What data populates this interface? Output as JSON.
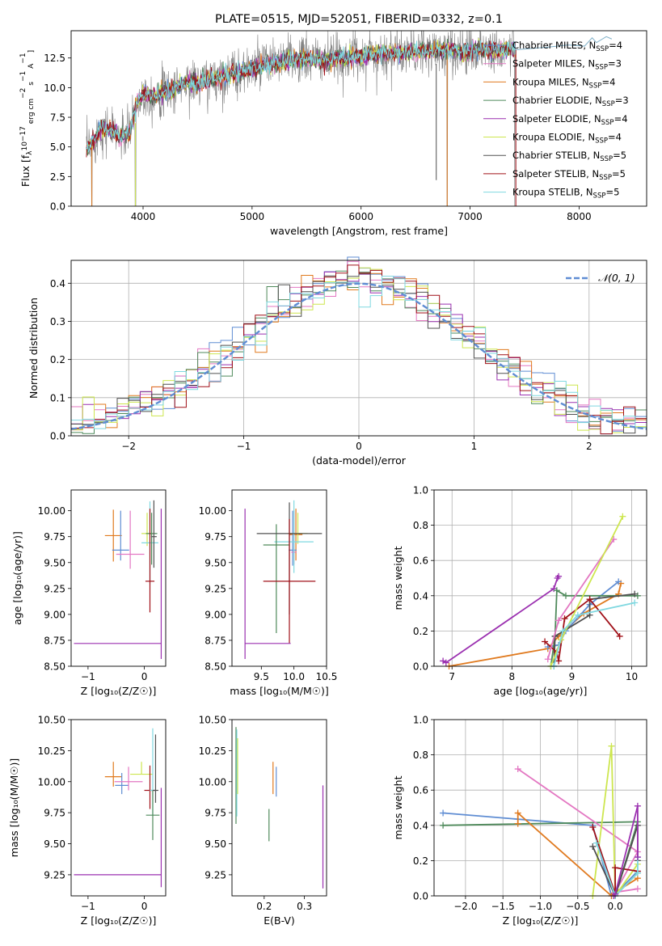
{
  "chart_data": [
    {
      "id": "spectrum",
      "type": "line",
      "title": "PLATE=0515, MJD=52051, FIBERID=0332, z=0.1",
      "xlabel": "wavelength [Angstrom, rest frame]",
      "ylabel_parts": [
        "Flux [f",
        "λ",
        "10",
        "−17",
        " erg cm",
        "−2",
        " s",
        "−1",
        " A",
        "−1",
        "]"
      ],
      "xlim": [
        3340,
        8620
      ],
      "ylim": [
        0,
        14.8
      ],
      "xticks": [
        4000,
        5000,
        6000,
        7000,
        8000
      ],
      "yticks": [
        0.0,
        2.5,
        5.0,
        7.5,
        10.0,
        12.5
      ],
      "grid": false,
      "legend_position": "upper-right",
      "continuum": {
        "x": [
          3480,
          3550,
          3620,
          3700,
          3800,
          3880,
          3950,
          4000,
          4100,
          4200,
          4300,
          4400,
          4500,
          4700,
          4900,
          5100,
          5300,
          5500,
          5700,
          5900,
          6100,
          6300,
          6500,
          6700,
          6900,
          7100,
          7300,
          7420
        ],
        "y": [
          4.8,
          5.6,
          6.6,
          6.4,
          5.8,
          6.3,
          8.9,
          9.5,
          9.3,
          9.6,
          10.0,
          10.4,
          10.4,
          10.9,
          11.3,
          11.9,
          12.3,
          12.4,
          12.3,
          12.6,
          12.8,
          12.9,
          13.0,
          13.1,
          13.1,
          13.2,
          13.2,
          13.2
        ]
      },
      "model_tail": {
        "x": [
          7420,
          7700,
          7900,
          8050,
          8120,
          8160,
          8250,
          8300
        ],
        "y": [
          13.2,
          13.4,
          13.6,
          13.5,
          14.2,
          13.8,
          14.3,
          14.1
        ]
      },
      "series": [
        {
          "name": "Chabrier MILES, N",
          "sub": "SSP",
          "suffix": "=4",
          "color": "#5f8dd3"
        },
        {
          "name": "Salpeter MILES, N",
          "sub": "SSP",
          "suffix": "=3",
          "color": "#e377c2"
        },
        {
          "name": "Kroupa MILES, N",
          "sub": "SSP",
          "suffix": "=4",
          "color": "#e07a1f"
        },
        {
          "name": "Chabrier ELODIE, N",
          "sub": "SSP",
          "suffix": "=3",
          "color": "#4f8a5b"
        },
        {
          "name": "Salpeter ELODIE, N",
          "sub": "SSP",
          "suffix": "=4",
          "color": "#9b30b0"
        },
        {
          "name": "Kroupa ELODIE, N",
          "sub": "SSP",
          "suffix": "=4",
          "color": "#cde64f"
        },
        {
          "name": "Chabrier STELIB, N",
          "sub": "SSP",
          "suffix": "=5",
          "color": "#505050"
        },
        {
          "name": "Salpeter STELIB, N",
          "sub": "SSP",
          "suffix": "=5",
          "color": "#a01018"
        },
        {
          "name": "Kroupa STELIB, N",
          "sub": "SSP",
          "suffix": "=5",
          "color": "#7fd8e0"
        }
      ]
    },
    {
      "id": "residuals",
      "type": "histogram",
      "xlabel": "(data-model)/error",
      "ylabel": "Normed distribution",
      "xlim": [
        -2.5,
        2.5
      ],
      "ylim": [
        0,
        0.46
      ],
      "xticks": [
        -2,
        -1,
        0,
        1,
        2
      ],
      "yticks": [
        0.0,
        0.1,
        0.2,
        0.3,
        0.4
      ],
      "grid": true,
      "legend_position": "upper-right",
      "gaussian_label": "𝒩(0, 1)",
      "gaussian_color": "#5f8dd3",
      "bin_width": 0.1
    },
    {
      "id": "age-vs-Z",
      "type": "scatter",
      "xlabel": "Z [log₁₀(Z/Z☉)]",
      "ylabel": "age  [log₁₀(age/yr)]",
      "xlim": [
        -1.3,
        0.38
      ],
      "ylim": [
        8.5,
        10.2
      ],
      "xticks": [
        -1,
        0
      ],
      "yticks": [
        8.5,
        8.75,
        9.0,
        9.25,
        9.5,
        9.75,
        10.0
      ],
      "grid": false,
      "points": [
        {
          "x": -0.55,
          "y": 9.76,
          "xerr": [
            0.15,
            0.15
          ],
          "yerr": [
            0.25,
            0.25
          ],
          "color": "#e07a1f"
        },
        {
          "x": -0.42,
          "y": 9.62,
          "xerr": [
            0.15,
            0.15
          ],
          "yerr": [
            0.1,
            0.38
          ],
          "color": "#5f8dd3"
        },
        {
          "x": -0.25,
          "y": 9.58,
          "xerr": [
            0.25,
            0.25
          ],
          "yerr": [
            0.14,
            0.42
          ],
          "color": "#e377c2"
        },
        {
          "x": 0.05,
          "y": 9.78,
          "xerr": [
            0.1,
            0.1
          ],
          "yerr": [
            0.12,
            0.2
          ],
          "color": "#cde64f"
        },
        {
          "x": 0.1,
          "y": 9.69,
          "xerr": [
            0.15,
            0.15
          ],
          "yerr": [
            0.4,
            0.4
          ],
          "color": "#7fd8e0"
        },
        {
          "x": 0.13,
          "y": 9.78,
          "xerr": [
            0.1,
            0.1
          ],
          "yerr": [
            0.3,
            0.2
          ],
          "color": "#4f8a5b"
        },
        {
          "x": 0.17,
          "y": 9.75,
          "xerr": [
            0.05,
            0.05
          ],
          "yerr": [
            0.3,
            0.35
          ],
          "color": "#505050"
        },
        {
          "x": 0.1,
          "y": 9.32,
          "xerr": [
            0.08,
            0.08
          ],
          "yerr": [
            0.3,
            0.7
          ],
          "color": "#a01018"
        },
        {
          "x": 0.3,
          "y": 8.72,
          "xerr": [
            1.55,
            0.0
          ],
          "yerr": [
            0.15,
            1.3
          ],
          "color": "#9b30b0"
        }
      ]
    },
    {
      "id": "age-vs-mass",
      "type": "scatter",
      "xlabel": "mass [log₁₀(M/M☉)]",
      "ylabel": "",
      "xlim": [
        9.05,
        10.5
      ],
      "ylim": [
        8.5,
        10.2
      ],
      "xticks": [
        9.5,
        10.0,
        10.5
      ],
      "yticks": [
        8.5,
        8.75,
        9.0,
        9.25,
        9.5,
        9.75,
        10.0
      ],
      "grid": false,
      "points": [
        {
          "x": 10.03,
          "y": 9.77,
          "xerr": [
            0.1,
            0.1
          ],
          "yerr": [
            0.25,
            0.25
          ],
          "color": "#e07a1f"
        },
        {
          "x": 9.98,
          "y": 9.62,
          "xerr": [
            0.06,
            0.06
          ],
          "yerr": [
            0.15,
            0.38
          ],
          "color": "#5f8dd3"
        },
        {
          "x": 10.0,
          "y": 9.6,
          "xerr": [
            0.04,
            0.04
          ],
          "yerr": [
            0.12,
            0.4
          ],
          "color": "#e377c2"
        },
        {
          "x": 10.06,
          "y": 9.78,
          "xerr": [
            0.15,
            0.15
          ],
          "yerr": [
            0.1,
            0.2
          ],
          "color": "#cde64f"
        },
        {
          "x": 10.0,
          "y": 9.7,
          "xerr": [
            0.3,
            0.3
          ],
          "yerr": [
            0.3,
            0.4
          ],
          "color": "#7fd8e0"
        },
        {
          "x": 9.73,
          "y": 9.67,
          "xerr": [
            0.2,
            0.2
          ],
          "yerr": [
            0.85,
            0.2
          ],
          "color": "#4f8a5b"
        },
        {
          "x": 9.93,
          "y": 9.78,
          "xerr": [
            0.5,
            0.5
          ],
          "yerr": [
            0.78,
            0.3
          ],
          "color": "#505050"
        },
        {
          "x": 9.93,
          "y": 9.32,
          "xerr": [
            0.4,
            0.4
          ],
          "yerr": [
            0.6,
            0.6
          ],
          "color": "#a01018"
        },
        {
          "x": 9.25,
          "y": 8.72,
          "xerr": [
            0.0,
            0.7
          ],
          "yerr": [
            0.15,
            1.3
          ],
          "color": "#9b30b0"
        }
      ]
    },
    {
      "id": "weight-vs-age",
      "type": "line",
      "xlabel": "age  [log₁₀(age/yr)]",
      "ylabel": "mass weight",
      "xlim": [
        6.7,
        10.25
      ],
      "ylim": [
        0,
        1.0
      ],
      "xticks": [
        7,
        8,
        9,
        10
      ],
      "yticks": [
        0.0,
        0.2,
        0.4,
        0.6,
        0.8,
        1.0
      ],
      "grid": true,
      "series": [
        {
          "color": "#9b30b0",
          "x": [
            6.85,
            6.9,
            8.7,
            8.76,
            8.78
          ],
          "y": [
            0.03,
            0.02,
            0.44,
            0.5,
            0.51
          ]
        },
        {
          "color": "#e07a1f",
          "x": [
            6.95,
            8.6,
            8.78,
            9.2,
            9.78,
            9.82
          ],
          "y": [
            0.0,
            0.1,
            0.17,
            0.3,
            0.41,
            0.47
          ]
        },
        {
          "color": "#5f8dd3",
          "x": [
            8.6,
            8.78,
            8.9,
            9.3,
            9.78
          ],
          "y": [
            0.11,
            0.12,
            0.2,
            0.35,
            0.48
          ]
        },
        {
          "color": "#4f8a5b",
          "x": [
            8.65,
            8.72,
            8.75,
            8.9,
            10.1
          ],
          "y": [
            0.0,
            0.17,
            0.43,
            0.4,
            0.4
          ]
        },
        {
          "color": "#505050",
          "x": [
            8.7,
            8.72,
            9.3,
            9.3,
            10.05
          ],
          "y": [
            0.0,
            0.17,
            0.29,
            0.38,
            0.41
          ]
        },
        {
          "color": "#a01018",
          "x": [
            8.55,
            8.75,
            8.78,
            8.88,
            9.3,
            9.8
          ],
          "y": [
            0.14,
            0.08,
            0.03,
            0.27,
            0.38,
            0.17
          ]
        },
        {
          "color": "#e377c2",
          "x": [
            8.6,
            8.78,
            9.7
          ],
          "y": [
            0.04,
            0.26,
            0.72
          ]
        },
        {
          "color": "#cde64f",
          "x": [
            8.65,
            8.82,
            9.85
          ],
          "y": [
            0.0,
            0.15,
            0.85
          ]
        },
        {
          "color": "#7fd8e0",
          "x": [
            8.7,
            8.85,
            9.1,
            10.05
          ],
          "y": [
            0.0,
            0.2,
            0.29,
            0.36
          ]
        }
      ]
    },
    {
      "id": "mass-vs-Z",
      "type": "scatter",
      "xlabel": "Z [log₁₀(Z/Z☉)]",
      "ylabel": "mass [log₁₀(M/M☉)]",
      "xlim": [
        -1.3,
        0.38
      ],
      "ylim": [
        9.08,
        10.5
      ],
      "xticks": [
        -1,
        0
      ],
      "yticks": [
        9.25,
        9.5,
        9.75,
        10.0,
        10.25,
        10.5
      ],
      "grid": false,
      "points": [
        {
          "x": -0.55,
          "y": 10.04,
          "xerr": [
            0.15,
            0.15
          ],
          "yerr": [
            0.08,
            0.12
          ],
          "color": "#e07a1f"
        },
        {
          "x": -0.4,
          "y": 9.97,
          "xerr": [
            0.12,
            0.12
          ],
          "yerr": [
            0.07,
            0.1
          ],
          "color": "#5f8dd3"
        },
        {
          "x": -0.28,
          "y": 10.0,
          "xerr": [
            0.25,
            0.25
          ],
          "yerr": [
            0.07,
            0.12
          ],
          "color": "#e377c2"
        },
        {
          "x": -0.05,
          "y": 10.06,
          "xerr": [
            0.2,
            0.2
          ],
          "yerr": [
            0.0,
            0.1
          ],
          "color": "#cde64f"
        },
        {
          "x": 0.1,
          "y": 9.93,
          "xerr": [
            0.1,
            0.1
          ],
          "yerr": [
            0.15,
            0.2
          ],
          "color": "#a01018"
        },
        {
          "x": 0.15,
          "y": 9.93,
          "xerr": [
            0.05,
            0.05
          ],
          "yerr": [
            0.2,
            0.5
          ],
          "color": "#7fd8e0"
        },
        {
          "x": 0.15,
          "y": 9.73,
          "xerr": [
            0.12,
            0.12
          ],
          "yerr": [
            0.2,
            0.2
          ],
          "color": "#4f8a5b"
        },
        {
          "x": 0.2,
          "y": 9.93,
          "xerr": [
            0.05,
            0.05
          ],
          "yerr": [
            0.1,
            0.45
          ],
          "color": "#505050"
        },
        {
          "x": 0.3,
          "y": 9.25,
          "xerr": [
            1.55,
            0.0
          ],
          "yerr": [
            0.1,
            0.7
          ],
          "color": "#9b30b0"
        }
      ]
    },
    {
      "id": "mass-vs-ebv",
      "type": "scatter",
      "xlabel": "E(B-V)",
      "ylabel": "",
      "xlim": [
        0.12,
        0.355
      ],
      "ylim": [
        9.08,
        10.5
      ],
      "xticks": [
        0.2,
        0.3
      ],
      "yticks": [
        9.25,
        9.5,
        9.75,
        10.0,
        10.25,
        10.5
      ],
      "grid": false,
      "segments": [
        {
          "x": 0.13,
          "y0": 9.66,
          "y1": 10.44,
          "color": "#4f8a5b"
        },
        {
          "x": 0.132,
          "y0": 9.72,
          "y1": 10.42,
          "color": "#7fd8e0"
        },
        {
          "x": 0.134,
          "y0": 9.9,
          "y1": 10.35,
          "color": "#cde64f"
        },
        {
          "x": 0.212,
          "y0": 9.52,
          "y1": 9.78,
          "color": "#4f8a5b"
        },
        {
          "x": 0.222,
          "y0": 9.9,
          "y1": 10.16,
          "color": "#e07a1f"
        },
        {
          "x": 0.23,
          "y0": 9.88,
          "y1": 10.12,
          "color": "#5f8dd3"
        },
        {
          "x": 0.346,
          "y0": 9.14,
          "y1": 9.97,
          "color": "#9b30b0"
        }
      ]
    },
    {
      "id": "weight-vs-Z",
      "type": "line",
      "xlabel": "Z [log₁₀(Z/Z☉)]",
      "ylabel": "mass weight",
      "xlim": [
        -2.42,
        0.42
      ],
      "ylim": [
        0,
        1.0
      ],
      "xticks": [
        -2.0,
        -1.5,
        -1.0,
        -0.5,
        0.0
      ],
      "yticks": [
        0.0,
        0.2,
        0.4,
        0.6,
        0.8,
        1.0
      ],
      "grid": true,
      "series": [
        {
          "color": "#5f8dd3",
          "x": [
            -2.3,
            -0.3,
            -0.05,
            0.0,
            0.3
          ],
          "y": [
            0.47,
            0.4,
            0.0,
            0.01,
            0.14
          ]
        },
        {
          "color": "#4f8a5b",
          "x": [
            -2.3,
            0.3,
            0.0,
            0.3
          ],
          "y": [
            0.4,
            0.42,
            0.0,
            0.13
          ]
        },
        {
          "color": "#e07a1f",
          "x": [
            -1.3,
            -1.3,
            -0.05,
            0.0,
            0.3
          ],
          "y": [
            0.41,
            0.47,
            0.0,
            0.02,
            0.1
          ]
        },
        {
          "color": "#e377c2",
          "x": [
            -1.3,
            0.3,
            0.0,
            0.3
          ],
          "y": [
            0.72,
            0.25,
            0.02,
            0.04
          ]
        },
        {
          "color": "#cde64f",
          "x": [
            -0.3,
            -0.05,
            0.0,
            0.3
          ],
          "y": [
            0.0,
            0.85,
            0.0,
            0.18
          ]
        },
        {
          "color": "#a01018",
          "x": [
            -0.3,
            0.0,
            0.0,
            0.3
          ],
          "y": [
            0.39,
            0.01,
            0.16,
            0.14
          ]
        },
        {
          "color": "#505050",
          "x": [
            -0.3,
            0.0,
            0.3,
            0.3
          ],
          "y": [
            0.28,
            0.0,
            0.4,
            0.2
          ]
        },
        {
          "color": "#7fd8e0",
          "x": [
            -0.25,
            0.0,
            0.3,
            0.3
          ],
          "y": [
            0.3,
            0.0,
            0.13,
            0.22
          ]
        },
        {
          "color": "#9b30b0",
          "x": [
            -0.02,
            0.0,
            0.3,
            0.3
          ],
          "y": [
            0.0,
            0.01,
            0.51,
            0.22
          ]
        }
      ]
    }
  ]
}
